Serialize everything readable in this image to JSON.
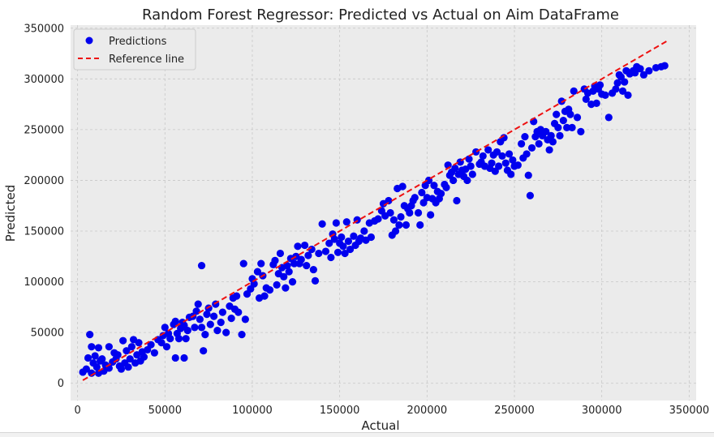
{
  "chart_data": {
    "type": "scatter",
    "title": "Random Forest Regressor: Predicted vs Actual on Aim DataFrame",
    "xlabel": "Actual",
    "ylabel": "Predicted",
    "xlim": [
      -4000,
      354000
    ],
    "ylim": [
      -17000,
      353000
    ],
    "xticks": [
      0,
      50000,
      100000,
      150000,
      200000,
      250000,
      300000,
      350000
    ],
    "xtick_labels": [
      "0",
      "50000",
      "100000",
      "150000",
      "200000",
      "250000",
      "300000",
      "350000"
    ],
    "yticks": [
      0,
      50000,
      100000,
      150000,
      200000,
      250000,
      300000,
      350000
    ],
    "ytick_labels": [
      "0",
      "50000",
      "100000",
      "150000",
      "200000",
      "250000",
      "300000",
      "350000"
    ],
    "grid": true,
    "legend_position": "top-left",
    "colors": {
      "points": "#0000ee",
      "reference": "#ee1111",
      "plot_bg": "#ebebeb",
      "grid": "#c8c8c8"
    },
    "series": [
      {
        "name": "Predictions",
        "kind": "points",
        "points": [
          [
            3000,
            11000
          ],
          [
            5000,
            14000
          ],
          [
            6000,
            25000
          ],
          [
            7000,
            48000
          ],
          [
            8000,
            36000
          ],
          [
            8000,
            10000
          ],
          [
            9000,
            20000
          ],
          [
            10000,
            27000
          ],
          [
            11000,
            16000
          ],
          [
            12000,
            35000
          ],
          [
            12000,
            10000
          ],
          [
            13000,
            22000
          ],
          [
            14000,
            24000
          ],
          [
            15000,
            12000
          ],
          [
            16000,
            18000
          ],
          [
            18000,
            36000
          ],
          [
            18000,
            15000
          ],
          [
            20000,
            21000
          ],
          [
            21000,
            30000
          ],
          [
            22000,
            24000
          ],
          [
            23000,
            28000
          ],
          [
            24000,
            17000
          ],
          [
            25000,
            14000
          ],
          [
            26000,
            42000
          ],
          [
            27000,
            20000
          ],
          [
            28000,
            32000
          ],
          [
            29000,
            16000
          ],
          [
            30000,
            24000
          ],
          [
            31000,
            36000
          ],
          [
            32000,
            43000
          ],
          [
            33000,
            20000
          ],
          [
            34000,
            28000
          ],
          [
            35000,
            40000
          ],
          [
            36000,
            22000
          ],
          [
            37000,
            31000
          ],
          [
            38000,
            26000
          ],
          [
            40000,
            33000
          ],
          [
            42000,
            38000
          ],
          [
            44000,
            30000
          ],
          [
            46000,
            43000
          ],
          [
            48000,
            40000
          ],
          [
            49000,
            47000
          ],
          [
            50000,
            55000
          ],
          [
            51000,
            36000
          ],
          [
            52000,
            49000
          ],
          [
            53000,
            44000
          ],
          [
            55000,
            58000
          ],
          [
            56000,
            25000
          ],
          [
            56000,
            61000
          ],
          [
            57000,
            49000
          ],
          [
            58000,
            44000
          ],
          [
            59000,
            54000
          ],
          [
            60000,
            60000
          ],
          [
            61000,
            25000
          ],
          [
            61000,
            57000
          ],
          [
            62000,
            44000
          ],
          [
            63000,
            52000
          ],
          [
            64000,
            65000
          ],
          [
            66000,
            66000
          ],
          [
            67000,
            55000
          ],
          [
            68000,
            71000
          ],
          [
            69000,
            78000
          ],
          [
            70000,
            63000
          ],
          [
            71000,
            116000
          ],
          [
            71000,
            55000
          ],
          [
            72000,
            32000
          ],
          [
            73000,
            48000
          ],
          [
            74000,
            68000
          ],
          [
            75000,
            74000
          ],
          [
            76000,
            58000
          ],
          [
            78000,
            66000
          ],
          [
            79000,
            78000
          ],
          [
            80000,
            52000
          ],
          [
            82000,
            60000
          ],
          [
            83000,
            70000
          ],
          [
            85000,
            50000
          ],
          [
            87000,
            76000
          ],
          [
            88000,
            64000
          ],
          [
            89000,
            84000
          ],
          [
            90000,
            73000
          ],
          [
            91000,
            86000
          ],
          [
            92000,
            70000
          ],
          [
            94000,
            48000
          ],
          [
            95000,
            118000
          ],
          [
            96000,
            63000
          ],
          [
            97000,
            88000
          ],
          [
            99000,
            93000
          ],
          [
            100000,
            103000
          ],
          [
            101000,
            98000
          ],
          [
            103000,
            110000
          ],
          [
            104000,
            84000
          ],
          [
            105000,
            118000
          ],
          [
            106000,
            106000
          ],
          [
            107000,
            86000
          ],
          [
            108000,
            94000
          ],
          [
            110000,
            92000
          ],
          [
            112000,
            117000
          ],
          [
            113000,
            121000
          ],
          [
            114000,
            97000
          ],
          [
            115000,
            108000
          ],
          [
            116000,
            128000
          ],
          [
            117000,
            114000
          ],
          [
            118000,
            105000
          ],
          [
            119000,
            94000
          ],
          [
            120000,
            116000
          ],
          [
            121000,
            110000
          ],
          [
            122000,
            123000
          ],
          [
            123000,
            100000
          ],
          [
            124000,
            118000
          ],
          [
            125000,
            125000
          ],
          [
            126000,
            135000
          ],
          [
            127000,
            118000
          ],
          [
            128000,
            122000
          ],
          [
            130000,
            136000
          ],
          [
            131000,
            116000
          ],
          [
            132000,
            126000
          ],
          [
            134000,
            132000
          ],
          [
            135000,
            112000
          ],
          [
            136000,
            101000
          ],
          [
            138000,
            128000
          ],
          [
            140000,
            157000
          ],
          [
            142000,
            130000
          ],
          [
            144000,
            138000
          ],
          [
            145000,
            124000
          ],
          [
            146000,
            147000
          ],
          [
            147000,
            142000
          ],
          [
            148000,
            158000
          ],
          [
            149000,
            129000
          ],
          [
            150000,
            138000
          ],
          [
            151000,
            144000
          ],
          [
            152000,
            135000
          ],
          [
            153000,
            128000
          ],
          [
            154000,
            159000
          ],
          [
            155000,
            140000
          ],
          [
            156000,
            132000
          ],
          [
            158000,
            145000
          ],
          [
            159000,
            136000
          ],
          [
            160000,
            161000
          ],
          [
            161000,
            140000
          ],
          [
            162000,
            143000
          ],
          [
            164000,
            150000
          ],
          [
            165000,
            141000
          ],
          [
            167000,
            158000
          ],
          [
            168000,
            144000
          ],
          [
            170000,
            160000
          ],
          [
            172000,
            162000
          ],
          [
            174000,
            170000
          ],
          [
            175000,
            177000
          ],
          [
            176000,
            165000
          ],
          [
            178000,
            180000
          ],
          [
            179000,
            168000
          ],
          [
            180000,
            146000
          ],
          [
            181000,
            161000
          ],
          [
            182000,
            150000
          ],
          [
            183000,
            192000
          ],
          [
            184000,
            156000
          ],
          [
            185000,
            164000
          ],
          [
            186000,
            194000
          ],
          [
            187000,
            175000
          ],
          [
            188000,
            156000
          ],
          [
            189000,
            172000
          ],
          [
            190000,
            168000
          ],
          [
            191000,
            175000
          ],
          [
            192000,
            180000
          ],
          [
            193000,
            183000
          ],
          [
            195000,
            168000
          ],
          [
            196000,
            156000
          ],
          [
            197000,
            188000
          ],
          [
            198000,
            178000
          ],
          [
            199000,
            195000
          ],
          [
            200000,
            183000
          ],
          [
            201000,
            200000
          ],
          [
            202000,
            166000
          ],
          [
            203000,
            182000
          ],
          [
            204000,
            195000
          ],
          [
            205000,
            178000
          ],
          [
            206000,
            189000
          ],
          [
            207000,
            182000
          ],
          [
            208000,
            187000
          ],
          [
            210000,
            196000
          ],
          [
            211000,
            193000
          ],
          [
            212000,
            215000
          ],
          [
            213000,
            205000
          ],
          [
            214000,
            208000
          ],
          [
            215000,
            200000
          ],
          [
            216000,
            212000
          ],
          [
            217000,
            180000
          ],
          [
            218000,
            206000
          ],
          [
            219000,
            218000
          ],
          [
            220000,
            210000
          ],
          [
            221000,
            204000
          ],
          [
            222000,
            211000
          ],
          [
            223000,
            200000
          ],
          [
            224000,
            221000
          ],
          [
            225000,
            214000
          ],
          [
            226000,
            206000
          ],
          [
            228000,
            228000
          ],
          [
            230000,
            216000
          ],
          [
            231000,
            218000
          ],
          [
            232000,
            224000
          ],
          [
            233000,
            214000
          ],
          [
            235000,
            230000
          ],
          [
            236000,
            212000
          ],
          [
            237000,
            217000
          ],
          [
            238000,
            225000
          ],
          [
            239000,
            209000
          ],
          [
            240000,
            228000
          ],
          [
            241000,
            214000
          ],
          [
            242000,
            238000
          ],
          [
            243000,
            224000
          ],
          [
            244000,
            242000
          ],
          [
            245000,
            217000
          ],
          [
            246000,
            210000
          ],
          [
            247000,
            226000
          ],
          [
            248000,
            206000
          ],
          [
            249000,
            220000
          ],
          [
            250000,
            214000
          ],
          [
            252000,
            215000
          ],
          [
            254000,
            236000
          ],
          [
            255000,
            222000
          ],
          [
            256000,
            243000
          ],
          [
            257000,
            226000
          ],
          [
            258000,
            205000
          ],
          [
            259000,
            185000
          ],
          [
            260000,
            232000
          ],
          [
            261000,
            258000
          ],
          [
            262000,
            243000
          ],
          [
            263000,
            248000
          ],
          [
            264000,
            236000
          ],
          [
            265000,
            250000
          ],
          [
            266000,
            244000
          ],
          [
            268000,
            248000
          ],
          [
            269000,
            240000
          ],
          [
            270000,
            230000
          ],
          [
            271000,
            244000
          ],
          [
            272000,
            238000
          ],
          [
            273000,
            256000
          ],
          [
            274000,
            265000
          ],
          [
            275000,
            252000
          ],
          [
            276000,
            244000
          ],
          [
            277000,
            278000
          ],
          [
            278000,
            259000
          ],
          [
            279000,
            268000
          ],
          [
            280000,
            252000
          ],
          [
            281000,
            270000
          ],
          [
            282000,
            265000
          ],
          [
            283000,
            252000
          ],
          [
            284000,
            288000
          ],
          [
            286000,
            262000
          ],
          [
            288000,
            248000
          ],
          [
            290000,
            290000
          ],
          [
            291000,
            280000
          ],
          [
            292000,
            286000
          ],
          [
            294000,
            275000
          ],
          [
            295000,
            288000
          ],
          [
            296000,
            293000
          ],
          [
            297000,
            276000
          ],
          [
            298000,
            290000
          ],
          [
            299000,
            294000
          ],
          [
            300000,
            285000
          ],
          [
            302000,
            284000
          ],
          [
            304000,
            262000
          ],
          [
            306000,
            286000
          ],
          [
            308000,
            290000
          ],
          [
            309000,
            296000
          ],
          [
            310000,
            304000
          ],
          [
            311000,
            302000
          ],
          [
            312000,
            288000
          ],
          [
            313000,
            297000
          ],
          [
            314000,
            308000
          ],
          [
            315000,
            284000
          ],
          [
            316000,
            305000
          ],
          [
            318000,
            308000
          ],
          [
            319000,
            306000
          ],
          [
            320000,
            312000
          ],
          [
            322000,
            310000
          ],
          [
            324000,
            304000
          ],
          [
            327000,
            308000
          ],
          [
            331000,
            311000
          ],
          [
            334000,
            312000
          ],
          [
            336000,
            313000
          ]
        ]
      },
      {
        "name": "Reference line",
        "kind": "line",
        "style": "dashed",
        "x": [
          3000,
          337000
        ],
        "y": [
          3000,
          337000
        ]
      }
    ]
  }
}
